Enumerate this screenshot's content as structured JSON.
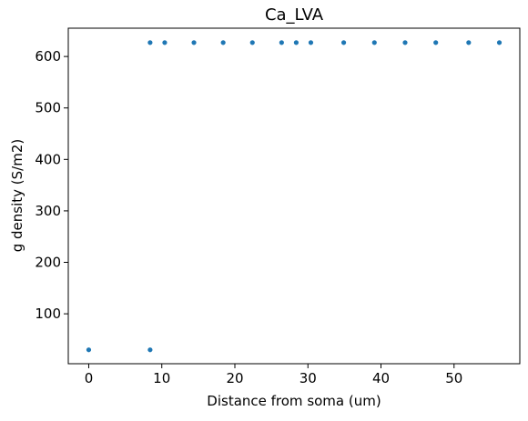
{
  "chart_data": {
    "type": "scatter",
    "title": "Ca_LVA",
    "xlabel": "Distance from soma (um)",
    "ylabel": "g density (S/m2)",
    "xlim": [
      -2.8,
      59.0
    ],
    "ylim": [
      3,
      655
    ],
    "xticks": [
      0,
      10,
      20,
      30,
      40,
      50
    ],
    "yticks": [
      100,
      200,
      300,
      400,
      500,
      600
    ],
    "grid": false,
    "marker_color": "#1f77b4",
    "series": [
      {
        "x": [
          0,
          8.4,
          8.4,
          10.4,
          14.4,
          18.4,
          22.4,
          26.4,
          28.4,
          30.4,
          34.9,
          39.1,
          43.3,
          47.5,
          52.0,
          56.2
        ],
        "y": [
          30,
          30,
          627,
          627,
          627,
          627,
          627,
          627,
          627,
          627,
          627,
          627,
          627,
          627,
          627,
          627
        ]
      }
    ]
  }
}
